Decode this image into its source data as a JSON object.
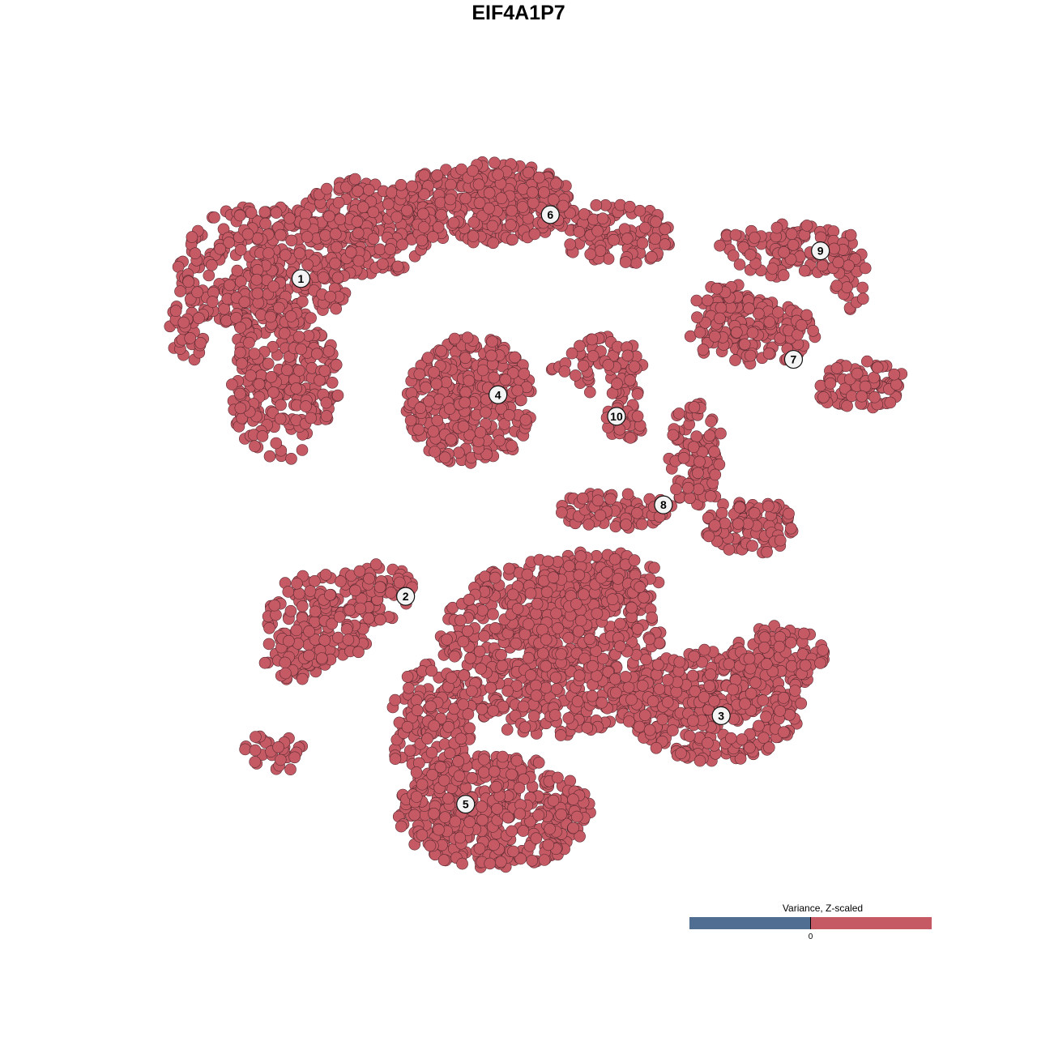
{
  "chart_data": {
    "type": "scatter",
    "title": "EIF4A1P7",
    "xlabel": "",
    "ylabel": "",
    "xlim": [
      -50,
      50
    ],
    "ylim": [
      -50,
      50
    ],
    "grid": false,
    "axes_visible": false,
    "point_color": "#c55a65",
    "point_outline": "#5a2a30",
    "cluster_labels": [
      {
        "label": "1",
        "x": -30.9,
        "y": 29.6
      },
      {
        "label": "2",
        "x": -17.3,
        "y": -11.7
      },
      {
        "label": "3",
        "x": 23.7,
        "y": -27.2
      },
      {
        "label": "4",
        "x": -5.3,
        "y": 14.5
      },
      {
        "label": "5",
        "x": -9.5,
        "y": -38.7
      },
      {
        "label": "6",
        "x": 1.5,
        "y": 37.9
      },
      {
        "label": "7",
        "x": 33.1,
        "y": 19.1
      },
      {
        "label": "8",
        "x": 16.2,
        "y": 0.2
      },
      {
        "label": "9",
        "x": 36.6,
        "y": 33.2
      },
      {
        "label": "10",
        "x": 10.1,
        "y": 11.7
      }
    ],
    "point_clouds": [
      {
        "cluster": "1",
        "center": [
          -35.3,
          31.0
        ],
        "spread": [
          11.6,
          8.4
        ],
        "n": 350
      },
      {
        "cluster": "1",
        "center": [
          -33.2,
          16.3
        ],
        "spread": [
          7.4,
          10.5
        ],
        "n": 250
      },
      {
        "cluster": "1",
        "center": [
          -45.8,
          23.7
        ],
        "spread": [
          2.6,
          5.3
        ],
        "n": 40
      },
      {
        "cluster": "1",
        "center": [
          -22.6,
          36.3
        ],
        "spread": [
          9.5,
          6.3
        ],
        "n": 250
      },
      {
        "cluster": "6",
        "center": [
          -6.8,
          39.5
        ],
        "spread": [
          11.6,
          5.3
        ],
        "n": 350
      },
      {
        "cluster": "6",
        "center": [
          10.0,
          35.3
        ],
        "spread": [
          7.4,
          4.2
        ],
        "n": 120
      },
      {
        "cluster": "4",
        "center": [
          -8.9,
          13.7
        ],
        "spread": [
          8.4,
          8.4
        ],
        "n": 350
      },
      {
        "cluster": "10",
        "center": [
          7.9,
          18.4
        ],
        "spread": [
          6.3,
          3.7
        ],
        "n": 60
      },
      {
        "cluster": "10",
        "center": [
          11.1,
          12.1
        ],
        "spread": [
          2.6,
          4.2
        ],
        "n": 40
      },
      {
        "cluster": "7",
        "center": [
          27.9,
          22.6
        ],
        "spread": [
          8.4,
          4.2
        ],
        "n": 150
      },
      {
        "cluster": "7",
        "center": [
          41.6,
          15.8
        ],
        "spread": [
          6.3,
          3.2
        ],
        "n": 80
      },
      {
        "cluster": "7",
        "center": [
          24.7,
          26.8
        ],
        "spread": [
          4.2,
          2.1
        ],
        "n": 50
      },
      {
        "cluster": "9",
        "center": [
          32.1,
          33.2
        ],
        "spread": [
          9.5,
          3.7
        ],
        "n": 110
      },
      {
        "cluster": "9",
        "center": [
          40.5,
          30.0
        ],
        "spread": [
          2.1,
          5.3
        ],
        "n": 30
      },
      {
        "cluster": "8",
        "center": [
          20.5,
          6.8
        ],
        "spread": [
          3.7,
          7.4
        ],
        "n": 100
      },
      {
        "cluster": "8",
        "center": [
          27.4,
          -2.6
        ],
        "spread": [
          5.8,
          3.7
        ],
        "n": 100
      },
      {
        "cluster": "8",
        "center": [
          10.0,
          -0.5
        ],
        "spread": [
          7.4,
          2.6
        ],
        "n": 80
      },
      {
        "cluster": "2",
        "center": [
          -27.9,
          -14.2
        ],
        "spread": [
          7.4,
          6.3
        ],
        "n": 150
      },
      {
        "cluster": "2",
        "center": [
          -31.1,
          -19.5
        ],
        "spread": [
          4.7,
          3.2
        ],
        "n": 60
      },
      {
        "cluster": "2",
        "center": [
          -20.5,
          -11.1
        ],
        "spread": [
          4.2,
          3.7
        ],
        "n": 60
      },
      {
        "cluster": "2",
        "center": [
          -34.2,
          -31.9
        ],
        "spread": [
          4.2,
          2.6
        ],
        "n": 30
      },
      {
        "cluster": "5",
        "center": [
          1.6,
          -18.4
        ],
        "spread": [
          14.7,
          11.6
        ],
        "n": 700
      },
      {
        "cluster": "5",
        "center": [
          7.9,
          -10.0
        ],
        "spread": [
          8.4,
          4.2
        ],
        "n": 150
      },
      {
        "cluster": "5",
        "center": [
          -5.8,
          -39.7
        ],
        "spread": [
          12.6,
          7.4
        ],
        "n": 450
      },
      {
        "cluster": "5",
        "center": [
          -14.2,
          -28.9
        ],
        "spread": [
          5.3,
          8.4
        ],
        "n": 150
      },
      {
        "cluster": "3",
        "center": [
          22.6,
          -25.8
        ],
        "spread": [
          11.6,
          7.4
        ],
        "n": 400
      },
      {
        "cluster": "3",
        "center": [
          31.1,
          -19.5
        ],
        "spread": [
          6.3,
          4.2
        ],
        "n": 120
      }
    ],
    "legend": {
      "title": "Variance, Z-scaled",
      "tick": "0",
      "low_color": "#506e92",
      "high_color": "#c55a65",
      "placement": "bottom-right"
    }
  }
}
